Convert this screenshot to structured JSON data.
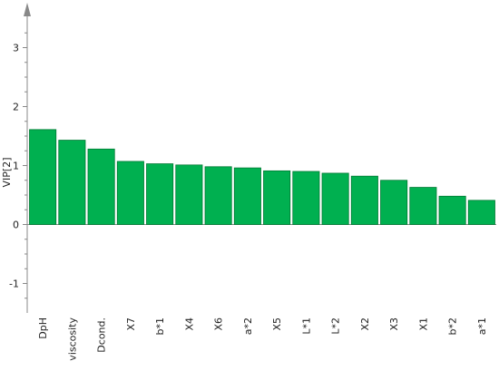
{
  "chart_data": {
    "type": "bar",
    "title": "",
    "xlabel": "",
    "ylabel": "VIP[2]",
    "ylim": [
      -1.5,
      3.5
    ],
    "yticks": [
      -1,
      0,
      1,
      2,
      3
    ],
    "grid": false,
    "categories": [
      "DpH",
      "viscosity",
      "Dcond.",
      "X7",
      "b*1",
      "X4",
      "X6",
      "a*2",
      "X5",
      "L*1",
      "L*2",
      "X2",
      "X3",
      "X1",
      "b*2",
      "a*1"
    ],
    "values": [
      1.61,
      1.43,
      1.28,
      1.07,
      1.03,
      1.01,
      0.98,
      0.96,
      0.91,
      0.9,
      0.87,
      0.82,
      0.75,
      0.63,
      0.48,
      0.41
    ],
    "bar_color": "#00b050",
    "bar_stroke": "#007a33",
    "axis_color": "#888888"
  }
}
